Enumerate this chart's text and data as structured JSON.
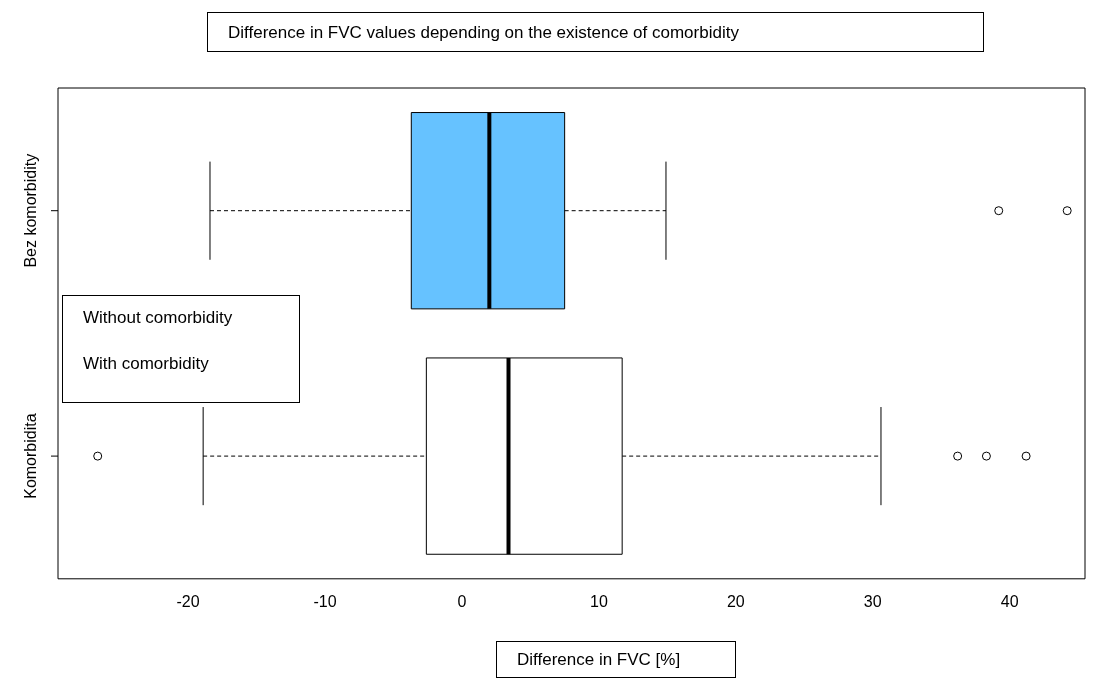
{
  "chart_data": {
    "type": "box",
    "title": "Difference in FVC values depending on the existence of comorbidity",
    "xlabel": "Difference in FVC [%]",
    "orientation": "horizontal",
    "categories": [
      "Bez komorbidity",
      "Komorbidita"
    ],
    "colors": [
      "#66c2ff",
      "#ffffff"
    ],
    "boxes": [
      {
        "low": -18.4,
        "q1": -3.7,
        "median": 2.0,
        "q3": 7.5,
        "high": 14.9,
        "outliers": [
          39.2,
          44.2
        ]
      },
      {
        "low": -18.9,
        "q1": -2.6,
        "median": 3.4,
        "q3": 11.7,
        "high": 30.6,
        "outliers": [
          -26.6,
          36.2,
          38.3,
          41.2
        ]
      }
    ],
    "xlim": [
      -29.5,
      45.5
    ],
    "xticks": [
      -20,
      -10,
      0,
      10,
      20,
      30,
      40
    ],
    "annotations": [
      "Without comorbidity",
      "With comorbidity"
    ],
    "grid": false,
    "legend": false
  }
}
